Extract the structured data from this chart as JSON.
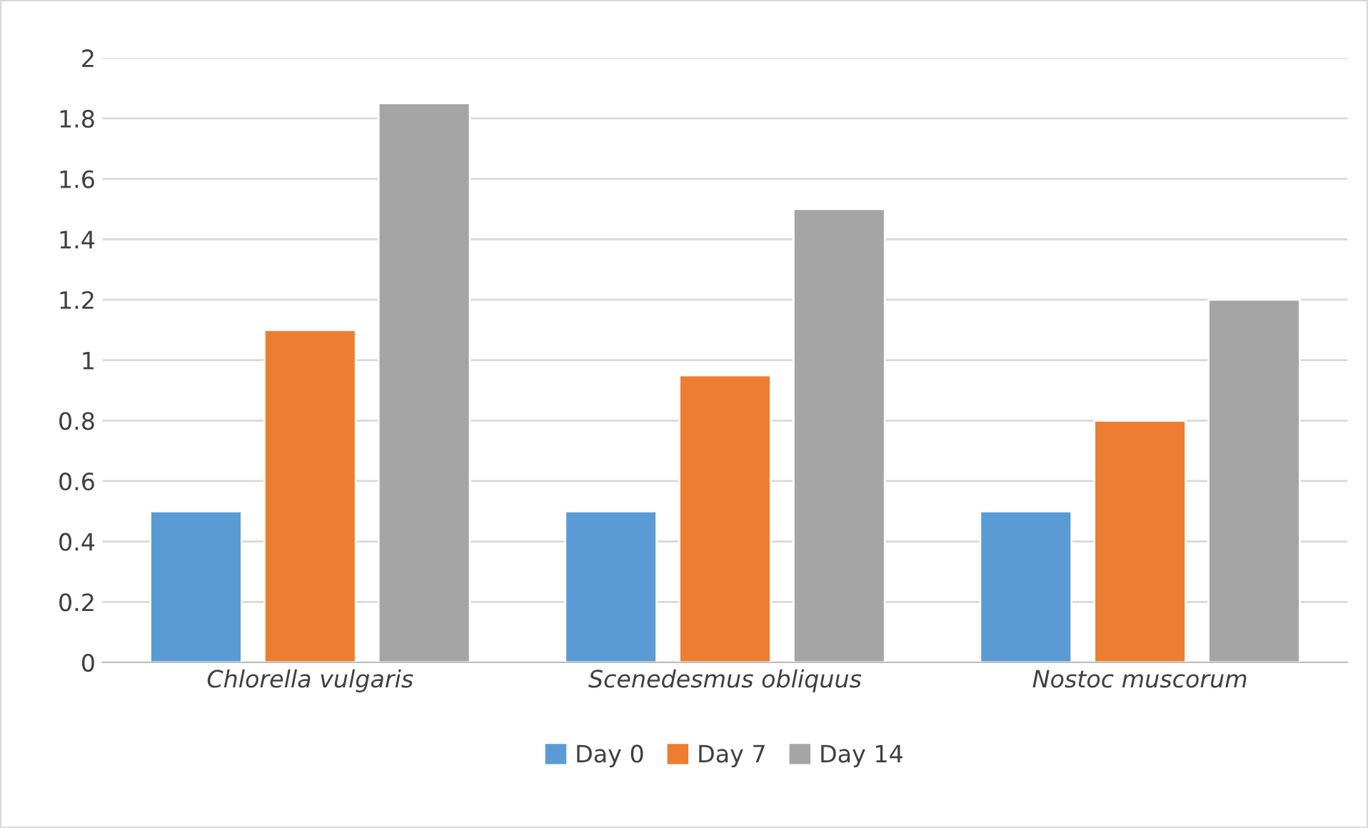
{
  "chart_data": {
    "type": "bar",
    "categories": [
      "Chlorella vulgaris",
      "Scenedesmus obliquus",
      "Nostoc muscorum"
    ],
    "series": [
      {
        "name": "Day 0",
        "color": "#5b9bd5",
        "values": [
          0.5,
          0.5,
          0.5
        ]
      },
      {
        "name": "Day 7",
        "color": "#ed7d31",
        "values": [
          1.1,
          0.95,
          0.8
        ]
      },
      {
        "name": "Day 14",
        "color": "#a5a5a5",
        "values": [
          1.85,
          1.5,
          1.2
        ]
      }
    ],
    "ylim": [
      0,
      2
    ],
    "yticks": [
      0,
      {
        "value": 0.2,
        "label": "0.2"
      },
      {
        "value": 0.4,
        "label": "0.4"
      },
      {
        "value": 0.6,
        "label": "0.6"
      },
      {
        "value": 0.8,
        "label": "0.8"
      },
      1,
      {
        "value": 1.2,
        "label": "1.2"
      },
      {
        "value": 1.4,
        "label": "1.4"
      },
      {
        "value": 1.6,
        "label": "1.6"
      },
      {
        "value": 1.8,
        "label": "1.8"
      },
      2
    ],
    "grid": "y",
    "legend": "bottom"
  }
}
